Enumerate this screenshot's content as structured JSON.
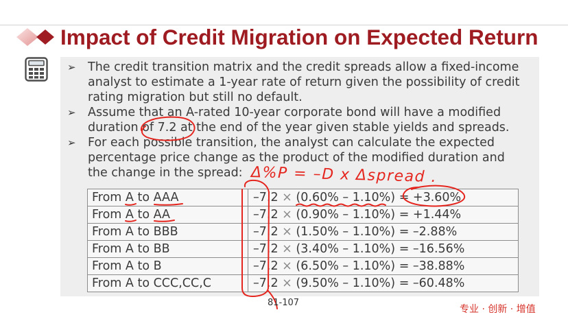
{
  "slide": {
    "title": "Impact of Credit Migration on Expected Return",
    "bullet_marker": "➢",
    "bullets": [
      {
        "lines": [
          "The credit transition matrix and the credit spreads allow a fixed-income",
          "analyst to estimate a 1-year rate of return given the possibility of credit",
          "rating migration but still no default."
        ]
      },
      {
        "lines": [
          "Assume that an A-rated 10-year corporate bond will have a modified",
          "duration of 7.2 at the end of the year given stable yields and spreads."
        ]
      },
      {
        "lines": [
          "For each possible transition, the analyst can calculate the expected",
          "percentage price change as the product of the modified duration and",
          "the change in the spread:"
        ]
      }
    ],
    "table": {
      "rows": [
        {
          "transition": "From A to AAA",
          "duration": "–7.2",
          "operator": "×",
          "calculation": "(0.60% – 1.10%) = +3.60%"
        },
        {
          "transition": "From A to AA",
          "duration": "–7.2",
          "operator": "×",
          "calculation": "(0.90% – 1.10%) = +1.44%"
        },
        {
          "transition": "From A to BBB",
          "duration": "–7.2",
          "operator": "×",
          "calculation": "(1.50% – 1.10%) = –2.88%"
        },
        {
          "transition": "From A to BB",
          "duration": "–7.2",
          "operator": "×",
          "calculation": "(3.40% – 1.10%) = –16.56%"
        },
        {
          "transition": "From A to B",
          "duration": "–7.2",
          "operator": "×",
          "calculation": "(6.50% – 1.10%) = –38.88%"
        },
        {
          "transition": "From A to CCC,CC,C",
          "duration": "–7.2",
          "operator": "×",
          "calculation": "(9.50% – 1.10%) = –60.48%"
        }
      ]
    },
    "page_number": "81-107",
    "footer_slogan": "专业 · 创新 · 增值"
  },
  "annotations": {
    "handwritten_formula": "Δ%P = –D x Δspread ."
  },
  "colors": {
    "title": "#9e1c21",
    "title_diamond_dark": "#9e1c22",
    "title_diamond_light": "#e39494",
    "body_text": "#3a3a3a",
    "content_panel": "#eeeeee",
    "annotation_ink": "#e5261f",
    "slogan": "#d6342b"
  },
  "icons": {
    "title_decoration": "diamond-icon",
    "sidebar": "calculator-icon",
    "bullet": "bullet-arrow-icon"
  }
}
